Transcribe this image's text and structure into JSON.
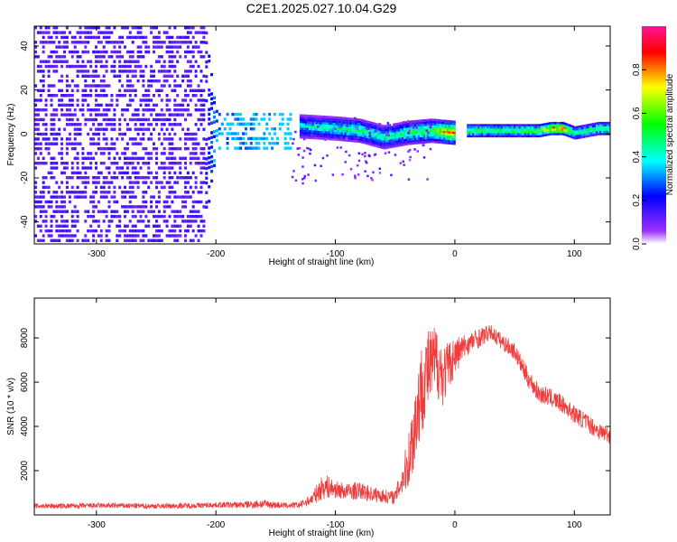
{
  "figure": {
    "title": "C2E1.2025.027.10.04.G29"
  },
  "chart_data": [
    {
      "type": "heatmap",
      "title": "",
      "xlabel": "Height of straight line (km)",
      "ylabel": "Frequency (Hz)",
      "xlim": [
        -352,
        130
      ],
      "ylim": [
        -50,
        49
      ],
      "xticks": [
        -300,
        -200,
        -100,
        0,
        100
      ],
      "yticks": [
        -40,
        -20,
        0,
        20,
        40
      ],
      "grid": false,
      "colorbar": {
        "label": "Normalized spectral amplitude",
        "range": [
          0,
          1
        ],
        "ticks": [
          0.0,
          0.2,
          0.4,
          0.6,
          0.8
        ],
        "colors": [
          "#ffffff",
          "#9b30ff",
          "#0000ff",
          "#00ffff",
          "#00ff00",
          "#ffff00",
          "#ff0000",
          "#ff1493"
        ]
      },
      "series": [
        {
          "x": [
            -350,
            -300,
            -250,
            -210,
            -200,
            -180,
            -150,
            -138
          ],
          "freq_min": [
            -50,
            -50,
            -50,
            -50,
            -8,
            -8,
            -8,
            -8
          ],
          "freq_max": [
            49,
            49,
            49,
            49,
            8,
            8,
            8,
            8
          ],
          "amplitude": [
            0.1,
            0.1,
            0.1,
            0.1,
            0.25,
            0.25,
            0.3,
            0.3
          ]
        },
        {
          "x": [
            -130,
            -100,
            -80,
            -60,
            -40,
            -20,
            0
          ],
          "center_freq": [
            3,
            2,
            1,
            -2,
            0,
            1,
            0
          ],
          "amplitude": [
            0.4,
            0.45,
            0.5,
            0.45,
            0.5,
            0.6,
            0.85
          ]
        },
        {
          "x": [
            10,
            30,
            50,
            70,
            80,
            90,
            100,
            120,
            130
          ],
          "center_freq": [
            1,
            1,
            1,
            1,
            2,
            2,
            0,
            2,
            2
          ],
          "amplitude": [
            0.55,
            0.55,
            0.55,
            0.6,
            0.85,
            0.85,
            0.5,
            0.55,
            0.55
          ]
        }
      ]
    },
    {
      "type": "line",
      "title": "",
      "xlabel": "Height of straight line (km)",
      "ylabel": "SNR (10 * v/v)",
      "xlim": [
        -352,
        130
      ],
      "ylim": [
        0,
        9800
      ],
      "xticks": [
        -300,
        -200,
        -100,
        0,
        100
      ],
      "yticks": [
        2000,
        4000,
        6000,
        8000
      ],
      "grid": false,
      "series": [
        {
          "color": "#f03c3c",
          "x": [
            -350,
            -320,
            -300,
            -280,
            -260,
            -240,
            -220,
            -200,
            -180,
            -160,
            -150,
            -140,
            -130,
            -120,
            -110,
            -100,
            -90,
            -80,
            -70,
            -60,
            -50,
            -40,
            -35,
            -30,
            -25,
            -20,
            -15,
            -10,
            0,
            10,
            20,
            30,
            40,
            50,
            60,
            70,
            80,
            90,
            100,
            110,
            120,
            130
          ],
          "y": [
            400,
            400,
            420,
            420,
            400,
            400,
            420,
            450,
            450,
            500,
            450,
            420,
            450,
            700,
            1300,
            1150,
            1050,
            1100,
            950,
            850,
            800,
            2200,
            3500,
            5200,
            6300,
            6700,
            7000,
            6300,
            7200,
            7700,
            8000,
            8250,
            7800,
            7400,
            6300,
            5500,
            5300,
            5000,
            4550,
            4200,
            3800,
            3600
          ],
          "noise_amplitude": [
            120,
            120,
            120,
            120,
            120,
            120,
            120,
            120,
            150,
            200,
            150,
            120,
            150,
            250,
            600,
            400,
            380,
            400,
            350,
            320,
            300,
            1100,
            1900,
            2200,
            2000,
            1800,
            1700,
            1400,
            900,
            500,
            450,
            350,
            380,
            380,
            450,
            420,
            400,
            400,
            400,
            400,
            400,
            400
          ]
        }
      ]
    }
  ]
}
